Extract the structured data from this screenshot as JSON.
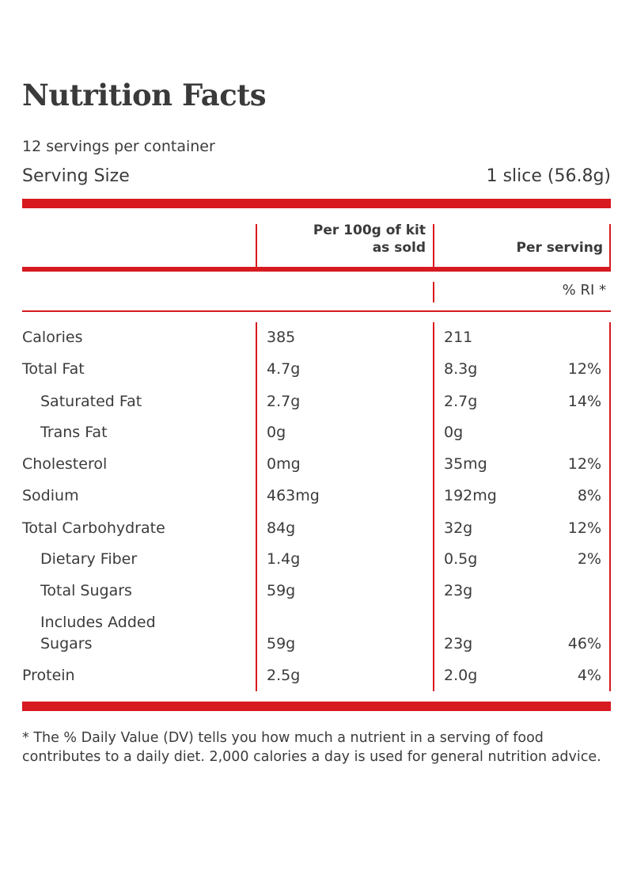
{
  "title": "Nutrition Facts",
  "servings_per_container": "12 servings per container",
  "serving_size": {
    "label": "Serving Size",
    "value": "1 slice (56.8g)"
  },
  "columns": {
    "per100_line1": "Per 100g of kit",
    "per100_line2": "as sold",
    "per_serving": "Per serving",
    "ri": "% RI *"
  },
  "rows": [
    {
      "name": "Calories",
      "per100": "385",
      "serving": "211",
      "ri": ""
    },
    {
      "name": "Total Fat",
      "per100": "4.7g",
      "serving": "8.3g",
      "ri": "12%"
    },
    {
      "name": "Saturated Fat",
      "per100": "2.7g",
      "serving": "2.7g",
      "ri": "14%"
    },
    {
      "name": "Trans Fat",
      "per100": "0g",
      "serving": "0g",
      "ri": ""
    },
    {
      "name": "Cholesterol",
      "per100": "0mg",
      "serving": "35mg",
      "ri": "12%"
    },
    {
      "name": "Sodium",
      "per100": "463mg",
      "serving": "192mg",
      "ri": "8%"
    },
    {
      "name": "Total Carbohydrate",
      "per100": "84g",
      "serving": "32g",
      "ri": "12%"
    },
    {
      "name": "Dietary Fiber",
      "per100": "1.4g",
      "serving": "0.5g",
      "ri": "2%"
    },
    {
      "name": "Total Sugars",
      "per100": "59g",
      "serving": "23g",
      "ri": ""
    },
    {
      "name_line1": "Includes Added",
      "name_line2": "Sugars",
      "per100": "59g",
      "serving": "23g",
      "ri": "46%"
    },
    {
      "name": "Protein",
      "per100": "2.5g",
      "serving": "2.0g",
      "ri": "4%"
    }
  ],
  "footnote": "* The % Daily Value (DV) tells you how much a nutrient in a serving of food contributes to a daily diet. 2,000 calories a day is used for general nutrition advice.",
  "colors": {
    "accent": "#d71920",
    "text": "#3b3b3b"
  }
}
